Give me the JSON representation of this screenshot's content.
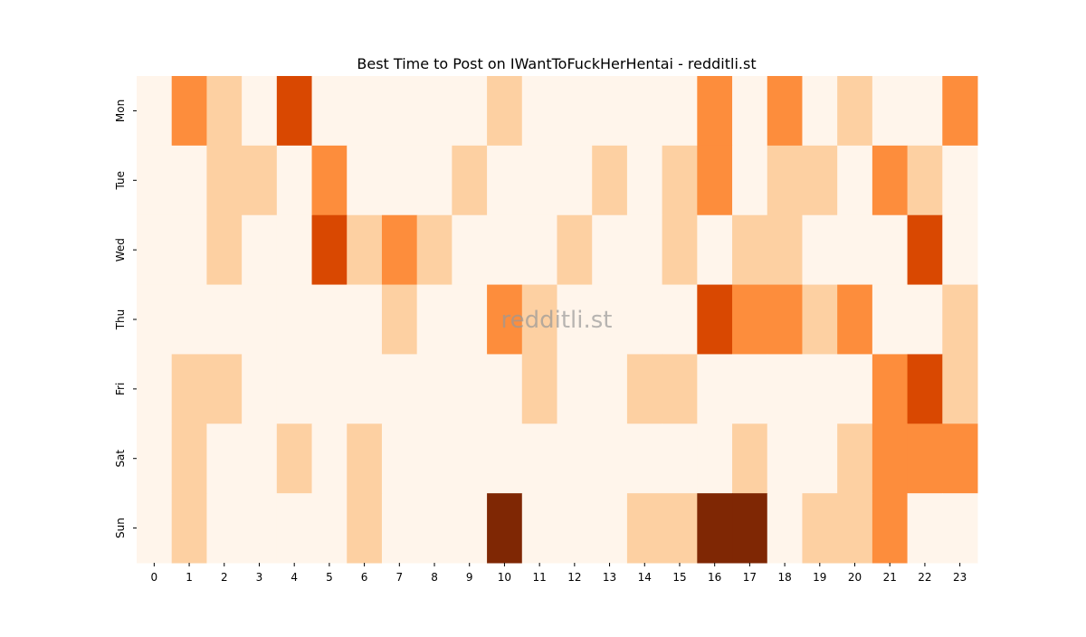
{
  "chart_data": {
    "type": "heatmap",
    "title": "Best Time to Post on IWantToFuckHerHentai - redditli.st",
    "watermark": "redditli.st",
    "x": [
      "0",
      "1",
      "2",
      "3",
      "4",
      "5",
      "6",
      "7",
      "8",
      "9",
      "10",
      "11",
      "12",
      "13",
      "14",
      "15",
      "16",
      "17",
      "18",
      "19",
      "20",
      "21",
      "22",
      "23"
    ],
    "y": [
      "Mon",
      "Tue",
      "Wed",
      "Thu",
      "Fri",
      "Sat",
      "Sun"
    ],
    "values": [
      [
        0,
        2,
        1,
        0,
        3,
        0,
        0,
        0,
        0,
        0,
        1,
        0,
        0,
        0,
        0,
        0,
        2,
        0,
        2,
        0,
        1,
        0,
        0,
        2
      ],
      [
        0,
        0,
        1,
        1,
        0,
        2,
        0,
        0,
        0,
        1,
        0,
        0,
        0,
        1,
        0,
        1,
        2,
        0,
        1,
        1,
        0,
        2,
        1,
        0
      ],
      [
        0,
        0,
        1,
        0,
        0,
        3,
        1,
        2,
        1,
        0,
        0,
        0,
        1,
        0,
        0,
        1,
        0,
        1,
        1,
        0,
        0,
        0,
        3,
        0
      ],
      [
        0,
        0,
        0,
        0,
        0,
        0,
        0,
        1,
        0,
        0,
        2,
        1,
        0,
        0,
        0,
        0,
        3,
        2,
        2,
        1,
        2,
        0,
        0,
        1
      ],
      [
        0,
        1,
        1,
        0,
        0,
        0,
        0,
        0,
        0,
        0,
        0,
        1,
        0,
        0,
        1,
        1,
        0,
        0,
        0,
        0,
        0,
        2,
        3,
        1
      ],
      [
        0,
        1,
        0,
        0,
        1,
        0,
        1,
        0,
        0,
        0,
        0,
        0,
        0,
        0,
        0,
        0,
        0,
        1,
        0,
        0,
        1,
        2,
        2,
        2
      ],
      [
        0,
        1,
        0,
        0,
        0,
        0,
        1,
        0,
        0,
        0,
        4,
        0,
        0,
        0,
        1,
        1,
        4,
        4,
        0,
        1,
        1,
        2,
        0,
        0
      ]
    ],
    "zlim": [
      0,
      4
    ],
    "colormap": [
      "#fff5eb",
      "#fdd0a2",
      "#fd8d3c",
      "#d94801",
      "#7f2704"
    ]
  }
}
